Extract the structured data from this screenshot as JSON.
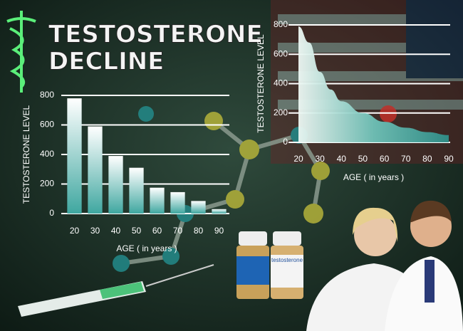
{
  "header": {
    "title_lines": [
      "TESTOSTERONE",
      "DECLINE"
    ]
  },
  "vial_label": "testosterone",
  "chart_data": [
    {
      "type": "bar",
      "categories": [
        "20",
        "30",
        "40",
        "50",
        "60",
        "70",
        "80",
        "90"
      ],
      "values": [
        780,
        590,
        390,
        310,
        175,
        145,
        85,
        30
      ],
      "ylim": [
        0,
        800
      ],
      "yticks": [
        0,
        200,
        400,
        600,
        800
      ],
      "x_label": "AGE ( in years )",
      "y_label": "TESTOSTERONE LEVEL",
      "color": "#4fb3ad",
      "grid": true
    },
    {
      "type": "area",
      "x": [
        20,
        25,
        30,
        35,
        40,
        50,
        60,
        70,
        80,
        90
      ],
      "values": [
        790,
        680,
        480,
        360,
        280,
        200,
        140,
        100,
        70,
        50
      ],
      "xlim": [
        20,
        90
      ],
      "xticks": [
        20,
        30,
        40,
        50,
        60,
        70,
        80,
        90
      ],
      "ylim": [
        0,
        800
      ],
      "yticks": [
        0,
        200,
        400,
        600,
        800
      ],
      "x_label": "AGE ( in years )",
      "y_label": "TESTOSTERONE LEVEL",
      "color": "#4fb3ad",
      "grid": true
    }
  ]
}
